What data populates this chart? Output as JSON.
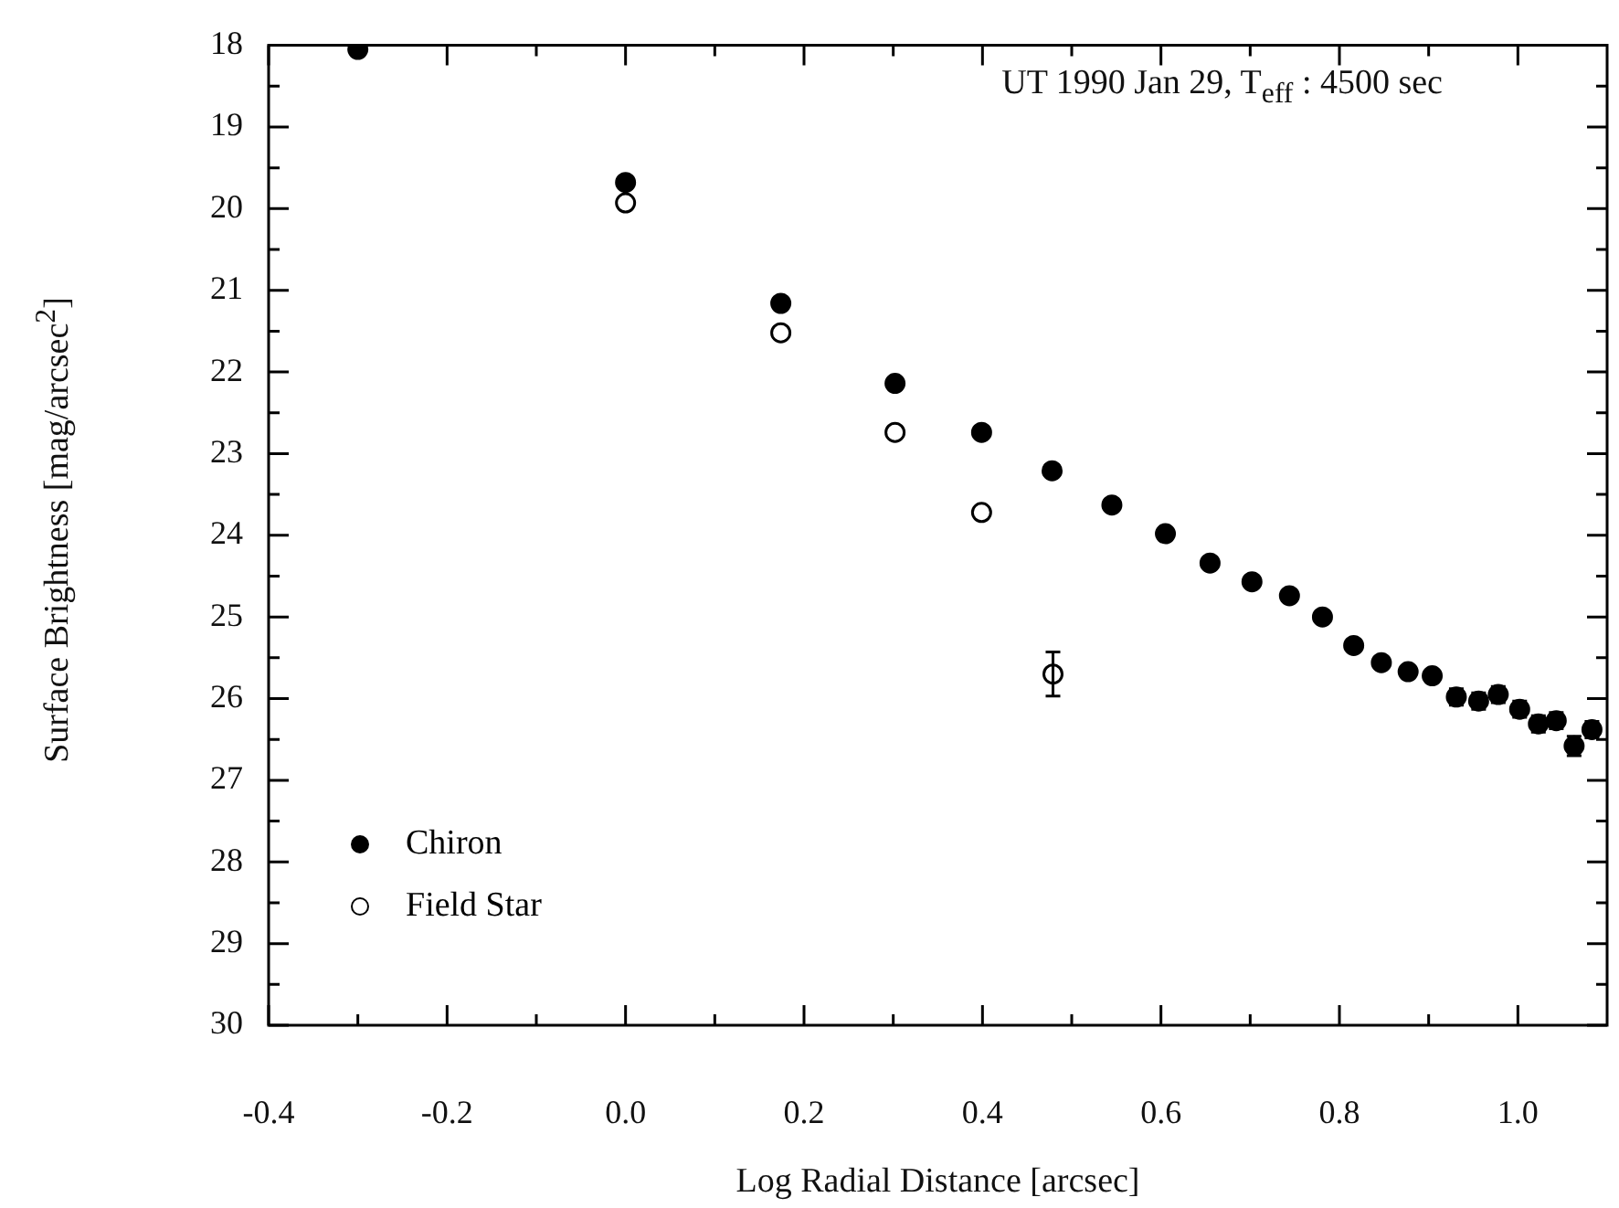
{
  "chart_data": {
    "type": "scatter",
    "xlabel": "Log Radial Distance [arcsec]",
    "ylabel": "Surface Brightness [mag/arcsec$^{2}$]",
    "annotations": [
      "UT 1990 Jan 29, T$_{eff}$ : 4500 sec"
    ],
    "xlim": [
      -0.4,
      1.1
    ],
    "ylim": [
      30,
      18
    ],
    "xticks": [
      -0.4,
      {
        "value": -0.3,
        "label": null
      },
      -0.2,
      {
        "value": -0.1,
        "label": null
      },
      {
        "value": 0,
        "label": "0.0"
      },
      {
        "value": 0.1,
        "label": null
      },
      0.2,
      {
        "value": 0.3,
        "label": null
      },
      0.4,
      {
        "value": 0.5,
        "label": null
      },
      0.6,
      {
        "value": 0.7,
        "label": null
      },
      0.8,
      {
        "value": 0.9,
        "label": null
      },
      {
        "value": 1,
        "label": "1.0"
      }
    ],
    "yticks": [
      18,
      {
        "value": 18.5,
        "label": null
      },
      19,
      {
        "value": 19.5,
        "label": null
      },
      20,
      {
        "value": 20.5,
        "label": null
      },
      21,
      {
        "value": 21.5,
        "label": null
      },
      22,
      {
        "value": 22.5,
        "label": null
      },
      23,
      {
        "value": 23.5,
        "label": null
      },
      24,
      {
        "value": 24.5,
        "label": null
      },
      25,
      {
        "value": 25.5,
        "label": null
      },
      26,
      {
        "value": 26.5,
        "label": null
      },
      27,
      {
        "value": 27.5,
        "label": null
      },
      28,
      {
        "value": 28.5,
        "label": null
      },
      29,
      {
        "value": 29.5,
        "label": null
      },
      30
    ],
    "grid": false,
    "legend": "bottom left",
    "marker": "circle",
    "series": [
      {
        "name": "Chiron",
        "color": "#000000",
        "x": [
          -0.3,
          0.0,
          0.174,
          0.302,
          0.399,
          0.478,
          0.545,
          0.605,
          0.655,
          0.702,
          0.744,
          0.781,
          0.816,
          0.847,
          0.877,
          0.904,
          0.931,
          0.956,
          0.978,
          1.002,
          1.023,
          1.043,
          1.063,
          1.083
        ],
        "values": [
          18.05,
          19.68,
          21.16,
          22.14,
          22.74,
          23.21,
          23.63,
          23.98,
          24.34,
          24.57,
          24.74,
          25.0,
          25.35,
          25.56,
          25.67,
          25.72,
          25.98,
          26.03,
          25.95,
          26.13,
          26.31,
          26.27,
          26.58,
          26.38
        ],
        "errors": [
          null,
          null,
          null,
          null,
          null,
          null,
          null,
          null,
          null,
          null,
          null,
          null,
          null,
          null,
          null,
          null,
          0.1,
          0.1,
          0.1,
          0.1,
          0.1,
          0.1,
          0.12,
          0.1
        ]
      },
      {
        "name": "Field Star",
        "color": "#ffffff",
        "x": [
          0.0,
          0.174,
          0.302,
          0.399,
          0.479
        ],
        "values": [
          19.93,
          21.52,
          22.74,
          23.72,
          25.7
        ],
        "errors": [
          null,
          null,
          null,
          null,
          0.27
        ]
      }
    ]
  }
}
